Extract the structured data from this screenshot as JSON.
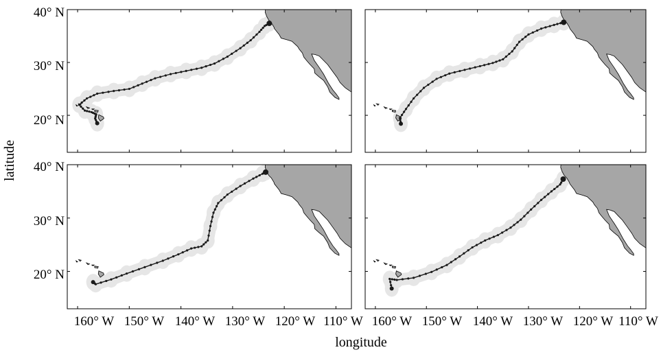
{
  "figure": {
    "xlabel": "longitude",
    "ylabel": "latitude",
    "x_ticks": [
      "160° W",
      "150° W",
      "140° W",
      "130° W",
      "120° W",
      "110° W"
    ],
    "y_ticks": [
      "40° N",
      "30° N",
      "20° N"
    ]
  },
  "colors": {
    "land": "#a6a6a6",
    "track": "#1a1a1a",
    "uncertainty": "#e6e6e6",
    "frame": "#000000"
  },
  "chart_data": [
    {
      "type": "line",
      "panel": "top-left",
      "xlim": [
        -162,
        -107
      ],
      "ylim": [
        13,
        40
      ],
      "track": [
        [
          -156.2,
          18.5
        ],
        [
          -156.6,
          19.4
        ],
        [
          -156.4,
          20.2
        ],
        [
          -157.3,
          20.6
        ],
        [
          -158.6,
          20.9
        ],
        [
          -159.7,
          22.0
        ],
        [
          -158.2,
          23.2
        ],
        [
          -156.2,
          24.1
        ],
        [
          -153.0,
          24.6
        ],
        [
          -150.0,
          25.0
        ],
        [
          -147.5,
          26.0
        ],
        [
          -145.0,
          27.0
        ],
        [
          -142.0,
          27.8
        ],
        [
          -139.0,
          28.4
        ],
        [
          -136.0,
          29.0
        ],
        [
          -133.5,
          29.8
        ],
        [
          -131.0,
          31.1
        ],
        [
          -128.5,
          32.7
        ],
        [
          -126.5,
          34.2
        ],
        [
          -124.8,
          35.8
        ],
        [
          -123.8,
          36.9
        ],
        [
          -122.9,
          37.4
        ]
      ]
    },
    {
      "type": "line",
      "panel": "top-right",
      "xlim": [
        -162,
        -107
      ],
      "ylim": [
        13,
        40
      ],
      "track": [
        [
          -155.0,
          18.4
        ],
        [
          -155.2,
          19.5
        ],
        [
          -154.0,
          21.2
        ],
        [
          -152.5,
          23.2
        ],
        [
          -150.5,
          25.2
        ],
        [
          -148.0,
          26.9
        ],
        [
          -145.5,
          27.9
        ],
        [
          -142.5,
          28.6
        ],
        [
          -139.5,
          29.3
        ],
        [
          -137.0,
          29.9
        ],
        [
          -135.0,
          30.6
        ],
        [
          -133.2,
          32.1
        ],
        [
          -131.8,
          33.9
        ],
        [
          -130.0,
          35.3
        ],
        [
          -127.5,
          36.4
        ],
        [
          -125.0,
          37.1
        ],
        [
          -123.1,
          37.6
        ]
      ]
    },
    {
      "type": "line",
      "panel": "bottom-left",
      "xlim": [
        -162,
        -107
      ],
      "ylim": [
        13,
        40
      ],
      "track": [
        [
          -157.0,
          18.0
        ],
        [
          -156.5,
          17.6
        ],
        [
          -153.5,
          18.5
        ],
        [
          -150.5,
          19.6
        ],
        [
          -147.0,
          20.8
        ],
        [
          -143.5,
          22.0
        ],
        [
          -140.5,
          23.2
        ],
        [
          -138.0,
          24.3
        ],
        [
          -136.0,
          24.7
        ],
        [
          -134.8,
          25.8
        ],
        [
          -134.3,
          28.5
        ],
        [
          -133.7,
          31.0
        ],
        [
          -132.8,
          32.8
        ],
        [
          -131.0,
          34.4
        ],
        [
          -128.5,
          36.0
        ],
        [
          -126.0,
          37.4
        ],
        [
          -124.2,
          38.3
        ],
        [
          -123.6,
          38.6
        ]
      ]
    },
    {
      "type": "line",
      "panel": "bottom-right",
      "xlim": [
        -162,
        -107
      ],
      "ylim": [
        13,
        40
      ],
      "track": [
        [
          -156.8,
          16.8
        ],
        [
          -157.2,
          18.6
        ],
        [
          -155.8,
          18.4
        ],
        [
          -152.5,
          18.8
        ],
        [
          -149.0,
          19.9
        ],
        [
          -146.0,
          21.2
        ],
        [
          -143.5,
          22.8
        ],
        [
          -141.0,
          24.5
        ],
        [
          -138.5,
          25.8
        ],
        [
          -136.0,
          26.8
        ],
        [
          -133.5,
          28.2
        ],
        [
          -131.5,
          29.7
        ],
        [
          -129.5,
          31.6
        ],
        [
          -127.5,
          33.4
        ],
        [
          -125.5,
          35.0
        ],
        [
          -123.8,
          36.3
        ],
        [
          -123.2,
          37.3
        ]
      ]
    }
  ]
}
